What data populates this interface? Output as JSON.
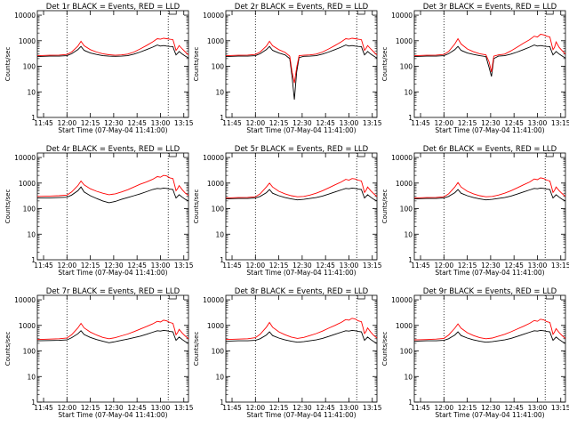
{
  "xlabel": "Start Time (07-May-04 11:41:00)",
  "ylabel": "Counts/sec",
  "x_tick_labels": [
    "11:45",
    "12:00",
    "12:15",
    "12:30",
    "12:45",
    "13:00",
    "13:15"
  ],
  "y_tick_labels": [
    "1",
    "10",
    "100",
    "1000",
    "10000"
  ],
  "colors": {
    "events": "#000000",
    "lld": "#ff0000"
  },
  "chart_data": [
    {
      "type": "line",
      "title": "Det 1r BLACK = Events, RED = LLD",
      "x_unit": "minutes since 11:41:00",
      "xlim": [
        0,
        97
      ],
      "ylim": [
        1,
        15000
      ],
      "y_scale": "log",
      "vlines": [
        19,
        84
      ],
      "grid": false,
      "x": [
        0,
        8,
        14,
        19,
        22,
        26,
        28,
        30,
        34,
        38,
        42,
        46,
        50,
        54,
        58,
        62,
        66,
        70,
        74,
        77,
        79,
        81,
        83,
        85,
        87,
        88,
        89,
        90,
        91,
        93,
        95,
        97
      ],
      "series": [
        {
          "name": "Events",
          "values": [
            240,
            250,
            250,
            260,
            310,
            450,
            600,
            420,
            330,
            290,
            260,
            250,
            245,
            250,
            260,
            300,
            360,
            450,
            560,
            680,
            620,
            650,
            620,
            600,
            590,
            400,
            280,
            320,
            380,
            300,
            250,
            210
          ]
        },
        {
          "name": "LLD",
          "values": [
            260,
            270,
            275,
            290,
            360,
            620,
            950,
            640,
            450,
            360,
            310,
            285,
            270,
            280,
            300,
            360,
            480,
            650,
            900,
            1200,
            1150,
            1250,
            1200,
            1150,
            1100,
            700,
            420,
            500,
            650,
            480,
            360,
            280
          ]
        }
      ]
    },
    {
      "type": "line",
      "title": "Det 2r BLACK = Events, RED = LLD",
      "x_unit": "minutes since 11:41:00",
      "xlim": [
        0,
        97
      ],
      "ylim": [
        1,
        15000
      ],
      "y_scale": "log",
      "vlines": [
        19,
        84
      ],
      "grid": false,
      "x": [
        0,
        8,
        14,
        19,
        22,
        26,
        28,
        30,
        34,
        38,
        41,
        42.5,
        44,
        45.5,
        47,
        50,
        54,
        58,
        62,
        66,
        70,
        74,
        77,
        79,
        81,
        83,
        85,
        87,
        88,
        89,
        90,
        91,
        93,
        95,
        97
      ],
      "series": [
        {
          "name": "Events",
          "values": [
            240,
            250,
            250,
            260,
            310,
            450,
            600,
            420,
            330,
            280,
            200,
            40,
            5,
            60,
            220,
            245,
            250,
            260,
            300,
            360,
            450,
            560,
            680,
            620,
            650,
            620,
            600,
            590,
            400,
            280,
            320,
            380,
            300,
            250,
            210
          ]
        },
        {
          "name": "LLD",
          "values": [
            260,
            270,
            275,
            290,
            360,
            620,
            950,
            640,
            450,
            350,
            250,
            60,
            22,
            90,
            260,
            270,
            280,
            300,
            360,
            480,
            650,
            900,
            1200,
            1150,
            1250,
            1200,
            1150,
            1100,
            700,
            420,
            500,
            650,
            480,
            360,
            280
          ]
        }
      ]
    },
    {
      "type": "line",
      "title": "Det 3r BLACK = Events, RED = LLD",
      "x_unit": "minutes since 11:41:00",
      "xlim": [
        0,
        97
      ],
      "ylim": [
        1,
        15000
      ],
      "y_scale": "log",
      "vlines": [
        19,
        84
      ],
      "grid": false,
      "x": [
        0,
        8,
        14,
        19,
        22,
        26,
        28,
        30,
        34,
        38,
        42,
        46,
        48,
        49.5,
        51,
        54,
        58,
        62,
        66,
        70,
        74,
        77,
        79,
        81,
        83,
        85,
        87,
        88,
        89,
        90,
        91,
        93,
        95,
        97
      ],
      "series": [
        {
          "name": "Events",
          "values": [
            240,
            250,
            250,
            260,
            310,
            450,
            600,
            420,
            330,
            290,
            260,
            240,
            90,
            40,
            200,
            250,
            260,
            300,
            360,
            450,
            560,
            680,
            620,
            650,
            620,
            600,
            590,
            400,
            280,
            320,
            380,
            300,
            250,
            210
          ]
        },
        {
          "name": "LLD",
          "values": [
            260,
            270,
            275,
            290,
            380,
            750,
            1200,
            750,
            480,
            370,
            310,
            280,
            150,
            60,
            250,
            280,
            300,
            400,
            560,
            800,
            1100,
            1500,
            1400,
            1800,
            1700,
            1500,
            1400,
            800,
            450,
            550,
            900,
            550,
            400,
            300
          ]
        }
      ]
    },
    {
      "type": "line",
      "title": "Det 4r BLACK = Events, RED = LLD",
      "x_unit": "minutes since 11:41:00",
      "xlim": [
        0,
        97
      ],
      "ylim": [
        1,
        15000
      ],
      "y_scale": "log",
      "vlines": [
        19,
        84
      ],
      "grid": false,
      "x": [
        0,
        8,
        14,
        19,
        22,
        26,
        28,
        30,
        34,
        38,
        42,
        46,
        50,
        54,
        58,
        62,
        66,
        70,
        74,
        77,
        79,
        81,
        83,
        85,
        87,
        88,
        89,
        90,
        91,
        93,
        95,
        97
      ],
      "series": [
        {
          "name": "Events",
          "values": [
            260,
            265,
            270,
            280,
            340,
            500,
            700,
            450,
            320,
            250,
            200,
            170,
            190,
            230,
            270,
            320,
            380,
            460,
            560,
            620,
            600,
            640,
            620,
            580,
            560,
            380,
            260,
            300,
            350,
            280,
            230,
            200
          ]
        },
        {
          "name": "LLD",
          "values": [
            300,
            310,
            320,
            340,
            450,
            800,
            1200,
            850,
            600,
            480,
            400,
            350,
            380,
            450,
            550,
            700,
            900,
            1100,
            1400,
            1800,
            1700,
            2000,
            1900,
            1600,
            1500,
            900,
            500,
            600,
            800,
            550,
            400,
            330
          ]
        }
      ]
    },
    {
      "type": "line",
      "title": "Det 5r BLACK = Events, RED = LLD",
      "x_unit": "minutes since 11:41:00",
      "xlim": [
        0,
        97
      ],
      "ylim": [
        1,
        15000
      ],
      "y_scale": "log",
      "vlines": [
        19,
        84
      ],
      "grid": false,
      "x": [
        0,
        8,
        14,
        19,
        22,
        26,
        28,
        30,
        34,
        38,
        42,
        46,
        50,
        54,
        58,
        62,
        66,
        70,
        74,
        77,
        79,
        81,
        83,
        85,
        87,
        88,
        89,
        90,
        91,
        93,
        95,
        97
      ],
      "series": [
        {
          "name": "Events",
          "values": [
            240,
            250,
            250,
            260,
            300,
            420,
            560,
            400,
            320,
            270,
            240,
            220,
            230,
            250,
            270,
            310,
            370,
            450,
            540,
            620,
            600,
            640,
            620,
            580,
            560,
            380,
            260,
            300,
            350,
            280,
            230,
            200
          ]
        },
        {
          "name": "LLD",
          "values": [
            260,
            270,
            275,
            290,
            380,
            700,
            1000,
            700,
            480,
            380,
            320,
            290,
            300,
            340,
            400,
            500,
            650,
            850,
            1100,
            1400,
            1300,
            1500,
            1450,
            1300,
            1200,
            750,
            430,
            520,
            700,
            500,
            380,
            300
          ]
        }
      ]
    },
    {
      "type": "line",
      "title": "Det 6r BLACK = Events, RED = LLD",
      "x_unit": "minutes since 11:41:00",
      "xlim": [
        0,
        97
      ],
      "ylim": [
        1,
        15000
      ],
      "y_scale": "log",
      "vlines": [
        19,
        84
      ],
      "grid": false,
      "x": [
        0,
        8,
        14,
        19,
        22,
        26,
        28,
        30,
        34,
        38,
        42,
        46,
        50,
        54,
        58,
        62,
        66,
        70,
        74,
        77,
        79,
        81,
        83,
        85,
        87,
        88,
        89,
        90,
        91,
        93,
        95,
        97
      ],
      "series": [
        {
          "name": "Events",
          "values": [
            240,
            250,
            250,
            260,
            300,
            420,
            560,
            400,
            320,
            270,
            240,
            220,
            230,
            250,
            270,
            310,
            370,
            450,
            540,
            620,
            600,
            640,
            620,
            580,
            560,
            380,
            260,
            300,
            350,
            280,
            230,
            200
          ]
        },
        {
          "name": "LLD",
          "values": [
            260,
            270,
            275,
            290,
            380,
            700,
            1050,
            700,
            480,
            380,
            320,
            290,
            300,
            340,
            400,
            500,
            650,
            850,
            1100,
            1450,
            1350,
            1600,
            1500,
            1300,
            1200,
            750,
            430,
            520,
            700,
            500,
            380,
            300
          ]
        }
      ]
    },
    {
      "type": "line",
      "title": "Det 7r BLACK = Events, RED = LLD",
      "x_unit": "minutes since 11:41:00",
      "xlim": [
        0,
        97
      ],
      "ylim": [
        1,
        15000
      ],
      "y_scale": "log",
      "vlines": [
        19,
        84
      ],
      "grid": false,
      "x": [
        0,
        8,
        14,
        19,
        22,
        26,
        28,
        30,
        34,
        38,
        42,
        46,
        50,
        54,
        58,
        62,
        66,
        70,
        74,
        77,
        79,
        81,
        83,
        85,
        87,
        88,
        89,
        90,
        91,
        93,
        95,
        97
      ],
      "series": [
        {
          "name": "Events",
          "values": [
            250,
            255,
            260,
            270,
            330,
            470,
            620,
            440,
            340,
            280,
            240,
            210,
            230,
            260,
            290,
            330,
            380,
            450,
            540,
            620,
            600,
            640,
            620,
            580,
            560,
            380,
            260,
            300,
            350,
            280,
            230,
            200
          ]
        },
        {
          "name": "LLD",
          "values": [
            280,
            290,
            300,
            320,
            430,
            800,
            1200,
            800,
            550,
            420,
            340,
            300,
            330,
            390,
            460,
            570,
            720,
            900,
            1150,
            1450,
            1350,
            1600,
            1500,
            1300,
            1200,
            750,
            430,
            520,
            700,
            500,
            380,
            300
          ]
        }
      ]
    },
    {
      "type": "line",
      "title": "Det 8r BLACK = Events, RED = LLD",
      "x_unit": "minutes since 11:41:00",
      "xlim": [
        0,
        97
      ],
      "ylim": [
        1,
        15000
      ],
      "y_scale": "log",
      "vlines": [
        19,
        84
      ],
      "grid": false,
      "x": [
        0,
        8,
        14,
        19,
        22,
        26,
        28,
        30,
        34,
        38,
        42,
        46,
        50,
        54,
        58,
        62,
        66,
        70,
        74,
        77,
        79,
        81,
        83,
        85,
        87,
        88,
        89,
        90,
        91,
        93,
        95,
        97
      ],
      "series": [
        {
          "name": "Events",
          "values": [
            240,
            250,
            250,
            260,
            300,
            420,
            560,
            400,
            320,
            270,
            240,
            220,
            230,
            250,
            270,
            310,
            370,
            450,
            540,
            620,
            600,
            640,
            620,
            580,
            560,
            380,
            260,
            300,
            350,
            280,
            230,
            200
          ]
        },
        {
          "name": "LLD",
          "values": [
            280,
            290,
            300,
            330,
            450,
            850,
            1300,
            850,
            560,
            430,
            350,
            310,
            340,
            400,
            480,
            600,
            780,
            1000,
            1300,
            1700,
            1600,
            1900,
            1800,
            1500,
            1400,
            850,
            480,
            580,
            800,
            550,
            400,
            320
          ]
        }
      ]
    },
    {
      "type": "line",
      "title": "Det 9r BLACK = Events, RED = LLD",
      "x_unit": "minutes since 11:41:00",
      "xlim": [
        0,
        97
      ],
      "ylim": [
        1,
        15000
      ],
      "y_scale": "log",
      "vlines": [
        19,
        84
      ],
      "grid": false,
      "x": [
        0,
        8,
        14,
        19,
        22,
        26,
        28,
        30,
        34,
        38,
        42,
        46,
        50,
        54,
        58,
        62,
        66,
        70,
        74,
        77,
        79,
        81,
        83,
        85,
        87,
        88,
        89,
        90,
        91,
        93,
        95,
        97
      ],
      "series": [
        {
          "name": "Events",
          "values": [
            240,
            250,
            250,
            260,
            300,
            420,
            560,
            400,
            320,
            270,
            240,
            220,
            230,
            250,
            270,
            310,
            370,
            450,
            540,
            620,
            600,
            640,
            620,
            580,
            560,
            380,
            260,
            300,
            350,
            280,
            230,
            200
          ]
        },
        {
          "name": "LLD",
          "values": [
            270,
            280,
            290,
            310,
            420,
            780,
            1150,
            780,
            520,
            400,
            330,
            300,
            320,
            380,
            450,
            560,
            720,
            920,
            1200,
            1550,
            1450,
            1750,
            1650,
            1400,
            1300,
            800,
            450,
            550,
            750,
            520,
            390,
            310
          ]
        }
      ]
    }
  ]
}
